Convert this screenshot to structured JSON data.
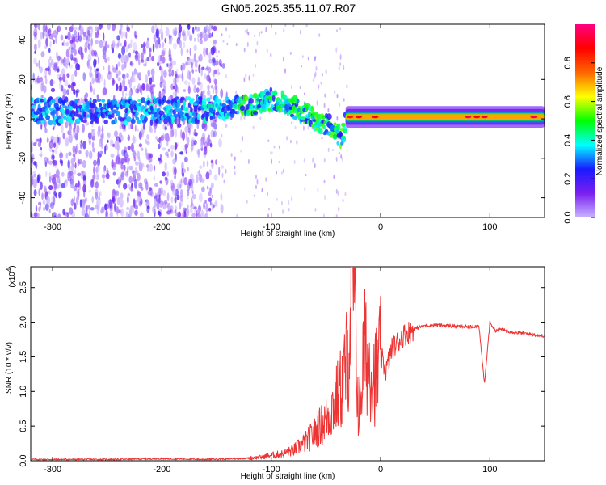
{
  "figure": {
    "title": "GN05.2025.355.11.07.R07"
  },
  "chart_data": [
    {
      "type": "heatmap",
      "xlabel": "Height of straight line (km)",
      "ylabel": "Frequency (Hz)",
      "xlim": [
        -320,
        150
      ],
      "ylim": [
        -50,
        48
      ],
      "x_ticks": [
        -300,
        -200,
        -100,
        0,
        100
      ],
      "y_ticks": [
        -40,
        -20,
        0,
        20,
        40
      ],
      "colorbar": {
        "label": "Normalized spectral amplitude",
        "range": [
          0,
          1
        ],
        "ticks": [
          0.0,
          0.2,
          0.4,
          0.6,
          0.8
        ],
        "colormap": [
          "#c8b4ff",
          "#7a1ff0",
          "#1a1aff",
          "#00ffff",
          "#00ff00",
          "#ffff00",
          "#ff6600",
          "#ff0000",
          "#ff0080"
        ]
      },
      "ridge": [
        {
          "x": -320,
          "y": 4
        },
        {
          "x": -250,
          "y": 4
        },
        {
          "x": -200,
          "y": 4
        },
        {
          "x": -150,
          "y": 5
        },
        {
          "x": -120,
          "y": 7
        },
        {
          "x": -100,
          "y": 10
        },
        {
          "x": -80,
          "y": 6
        },
        {
          "x": -60,
          "y": 0
        },
        {
          "x": -45,
          "y": -4
        },
        {
          "x": -35,
          "y": -10
        },
        {
          "x": -32,
          "y": 0
        },
        {
          "x": 0,
          "y": 1
        },
        {
          "x": 50,
          "y": 1
        },
        {
          "x": 100,
          "y": 1
        },
        {
          "x": 150,
          "y": 1
        }
      ]
    },
    {
      "type": "line",
      "xlabel": "Height of straight line (km)",
      "ylabel": "SNR (10 * v/v)",
      "y_multiplier": "(x10",
      "y_multiplier_exp": "4",
      "y_multiplier_close": ")",
      "xlim": [
        -320,
        150
      ],
      "ylim": [
        0,
        2.8
      ],
      "x_ticks": [
        -300,
        -200,
        -100,
        0,
        100
      ],
      "y_ticks": [
        0.0,
        0.5,
        1.0,
        1.5,
        2.0,
        2.5
      ],
      "y_tick_labels": [
        "0.0",
        "0.5",
        "1.0",
        "1.5",
        "2.0",
        "2.5"
      ],
      "color": "#ee3333",
      "series": [
        {
          "x": [
            -320,
            -280,
            -240,
            -200,
            -160,
            -130,
            -110,
            -100,
            -90,
            -80,
            -70,
            -60,
            -50,
            -40,
            -35,
            -30,
            -25,
            -20,
            -15,
            -10,
            -5,
            0,
            5,
            10,
            15,
            20,
            30,
            40,
            50,
            60,
            70,
            80,
            90,
            95,
            100,
            105,
            110,
            120,
            130,
            140,
            150
          ],
          "y": [
            0.02,
            0.02,
            0.02,
            0.03,
            0.02,
            0.03,
            0.05,
            0.08,
            0.1,
            0.15,
            0.25,
            0.4,
            0.6,
            0.9,
            1.1,
            1.5,
            2.8,
            0.6,
            1.6,
            1.4,
            1.2,
            1.5,
            1.3,
            1.6,
            1.7,
            1.8,
            1.9,
            1.95,
            1.96,
            1.95,
            1.94,
            1.93,
            1.95,
            1.1,
            2.0,
            1.88,
            1.9,
            1.86,
            1.84,
            1.82,
            1.8
          ]
        }
      ]
    }
  ]
}
